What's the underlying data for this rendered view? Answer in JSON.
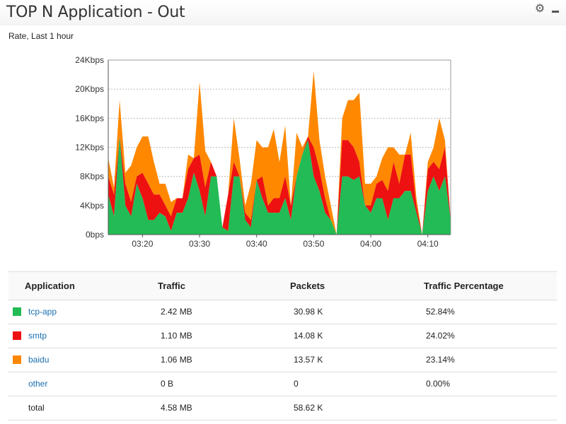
{
  "panel": {
    "title": "TOP N Application - Out",
    "subtitle": "Rate, Last 1 hour",
    "gear_icon": "gear-icon",
    "minimize_icon": "minimize-icon"
  },
  "colors": {
    "tcp-app": "#22bb55",
    "smtp": "#ee1111",
    "baidu": "#ff8800",
    "grid": "#bbbbbb"
  },
  "chart_data": {
    "type": "area",
    "stacked": true,
    "ylim": [
      0,
      24
    ],
    "yticks": [
      0,
      4,
      8,
      12,
      16,
      20,
      24
    ],
    "ytick_labels": [
      "0bps",
      "4Kbps",
      "8Kbps",
      "12Kbps",
      "16Kbps",
      "20Kbps",
      "24Kbps"
    ],
    "xlim": [
      "03:14",
      "04:14"
    ],
    "xticks": [
      "03:20",
      "03:30",
      "03:40",
      "03:50",
      "04:00",
      "04:10"
    ],
    "grid": "horizontal-dashed",
    "x": [
      "03:14",
      "03:15",
      "03:16",
      "03:17",
      "03:18",
      "03:19",
      "03:20",
      "03:21",
      "03:22",
      "03:23",
      "03:24",
      "03:25",
      "03:26",
      "03:27",
      "03:28",
      "03:29",
      "03:30",
      "03:31",
      "03:32",
      "03:33",
      "03:34",
      "03:35",
      "03:36",
      "03:37",
      "03:38",
      "03:39",
      "03:40",
      "03:41",
      "03:42",
      "03:43",
      "03:44",
      "03:45",
      "03:46",
      "03:47",
      "03:48",
      "03:49",
      "03:50",
      "03:51",
      "03:52",
      "03:53",
      "03:54",
      "03:55",
      "03:56",
      "03:57",
      "03:58",
      "03:59",
      "04:00",
      "04:01",
      "04:02",
      "04:03",
      "04:04",
      "04:05",
      "04:06",
      "04:07",
      "04:08",
      "04:09",
      "04:10",
      "04:11",
      "04:12",
      "04:13",
      "04:14"
    ],
    "series": [
      {
        "name": "tcp-app",
        "values": [
          5.5,
          2.5,
          13.5,
          4,
          2.5,
          7,
          5,
          2,
          2,
          3,
          2.5,
          0.5,
          3,
          3,
          5,
          8.5,
          6,
          2.5,
          8,
          8,
          1,
          0.5,
          8,
          8,
          2,
          1,
          7.5,
          5,
          3,
          3,
          3,
          5,
          2,
          8,
          11,
          13,
          8,
          6,
          3,
          2,
          0,
          8,
          8,
          7.5,
          8,
          4,
          3,
          5,
          5,
          2,
          5,
          5,
          6,
          6,
          3,
          0,
          6,
          8,
          6,
          8,
          2
        ]
      },
      {
        "name": "smtp",
        "values": [
          2.5,
          3,
          0,
          3,
          2,
          1,
          3.5,
          5,
          3.5,
          2.5,
          1.5,
          2,
          2,
          2,
          4,
          2,
          5,
          4,
          2,
          0,
          0,
          5,
          2,
          0,
          1,
          1,
          0,
          3,
          1,
          2,
          2,
          3,
          2,
          0,
          0,
          0.5,
          4,
          3,
          2,
          0,
          0,
          5,
          5,
          4.5,
          2,
          0,
          1,
          2,
          2.5,
          4,
          5,
          2,
          5,
          5,
          1,
          0,
          3,
          2,
          3,
          4,
          0
        ]
      },
      {
        "name": "baidu",
        "values": [
          2.5,
          1,
          5,
          1.5,
          5,
          4,
          5,
          6.5,
          4.5,
          1.5,
          3,
          2,
          0,
          0,
          2,
          0,
          10,
          5,
          0,
          0,
          0,
          0,
          6,
          2.5,
          1,
          5,
          5.5,
          4,
          8,
          9.5,
          5,
          7,
          0,
          6,
          1,
          0,
          10.5,
          4,
          3,
          2,
          0,
          3,
          5.5,
          6.5,
          9.5,
          3,
          3,
          1,
          3,
          6,
          2,
          4,
          0,
          3,
          1,
          0,
          1,
          2,
          7,
          1,
          0
        ]
      }
    ]
  },
  "table": {
    "headers": {
      "application": "Application",
      "traffic": "Traffic",
      "packets": "Packets",
      "percentage": "Traffic Percentage"
    },
    "rows": [
      {
        "application": "tcp-app",
        "traffic": "2.42 MB",
        "packets": "30.98 K",
        "percentage": "52.84%",
        "color": "#22bb55"
      },
      {
        "application": "smtp",
        "traffic": "1.10 MB",
        "packets": "14.08 K",
        "percentage": "24.02%",
        "color": "#ee1111"
      },
      {
        "application": "baidu",
        "traffic": "1.06 MB",
        "packets": "13.57 K",
        "percentage": "23.14%",
        "color": "#ff8800"
      },
      {
        "application": "other",
        "traffic": "0 B",
        "packets": "0",
        "percentage": "0.00%"
      }
    ],
    "total": {
      "label": "total",
      "traffic": "4.58 MB",
      "packets": "58.62 K"
    }
  }
}
